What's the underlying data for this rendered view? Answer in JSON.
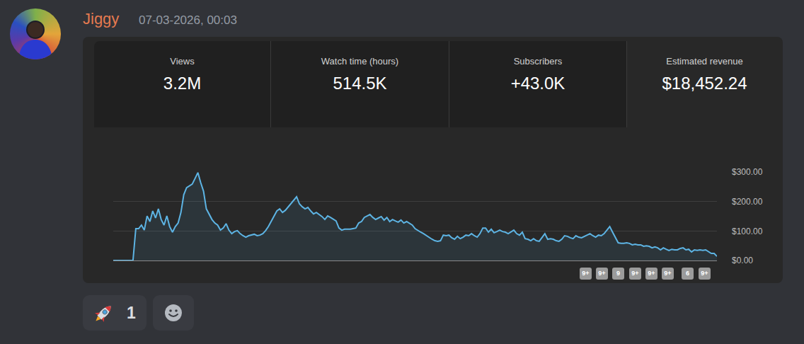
{
  "message": {
    "author": "Jiggy",
    "timestamp": "07-03-2026, 00:03",
    "reactions": [
      {
        "count": 1
      }
    ]
  },
  "stats": [
    {
      "label": "Views",
      "value": "3.2M"
    },
    {
      "label": "Watch time (hours)",
      "value": "514.5K"
    },
    {
      "label": "Subscribers",
      "value": "+43.0K"
    },
    {
      "label": "Estimated revenue",
      "value": "$18,452.24"
    }
  ],
  "chart_data": {
    "type": "line",
    "categories": [
      null,
      null,
      null,
      null,
      null,
      null,
      null,
      null,
      null,
      null,
      null,
      null,
      null,
      null,
      null,
      null,
      null,
      null,
      null,
      null,
      null,
      null,
      null,
      null,
      null,
      null,
      null,
      null,
      null,
      null,
      null,
      null,
      null,
      null,
      null,
      null,
      null,
      null,
      null,
      null,
      null,
      null,
      null,
      null,
      null,
      null,
      null,
      null,
      null,
      null,
      null,
      null,
      null,
      null,
      null,
      null,
      null,
      null,
      null,
      null,
      null,
      null,
      null,
      null,
      null,
      null,
      null,
      null,
      null,
      null,
      null,
      null,
      null,
      null,
      null,
      null,
      null,
      null,
      null,
      null,
      null,
      null,
      null,
      null,
      null,
      null,
      null,
      null,
      null,
      null,
      null,
      null,
      null,
      null,
      null,
      null,
      null,
      null,
      null,
      null,
      null,
      null,
      null,
      null,
      null,
      null,
      null,
      null,
      null,
      null,
      null,
      null,
      null,
      null,
      null,
      null,
      null,
      null,
      null,
      null,
      null,
      null,
      null,
      null,
      null,
      null,
      null,
      null,
      null,
      null,
      null,
      null,
      null,
      null,
      null,
      null,
      null,
      null,
      null,
      null,
      null,
      null,
      null,
      null,
      null,
      null,
      null,
      null,
      null,
      null,
      null,
      null,
      null,
      null,
      null,
      null,
      null,
      null,
      null,
      null,
      null,
      null,
      null,
      null,
      null,
      null,
      null,
      null,
      null,
      null,
      null,
      null,
      null,
      null,
      null,
      null,
      null,
      null,
      null,
      null,
      null,
      null,
      null,
      null,
      null,
      null,
      null,
      null,
      null,
      null,
      null,
      null,
      null,
      null,
      null,
      null,
      null,
      null,
      null,
      null,
      null,
      null,
      null,
      null,
      null,
      null,
      null,
      null,
      null,
      null,
      null,
      null,
      null,
      null,
      null
    ],
    "values": [
      0,
      0,
      0,
      0,
      0,
      0,
      0,
      0,
      108,
      108,
      120,
      103,
      151,
      132,
      168,
      144,
      175,
      139,
      120,
      151,
      115,
      96,
      115,
      127,
      163,
      223,
      247,
      252,
      259,
      278,
      298,
      264,
      235,
      175,
      156,
      139,
      127,
      120,
      103,
      110,
      125,
      103,
      91,
      98,
      101,
      91,
      84,
      79,
      84,
      86,
      89,
      84,
      86,
      91,
      101,
      115,
      132,
      151,
      168,
      175,
      163,
      170,
      182,
      194,
      206,
      216,
      192,
      182,
      175,
      180,
      168,
      158,
      163,
      156,
      149,
      139,
      151,
      146,
      139,
      134,
      110,
      103,
      106,
      106,
      106,
      108,
      110,
      127,
      132,
      146,
      151,
      156,
      146,
      139,
      144,
      149,
      137,
      146,
      132,
      139,
      134,
      130,
      137,
      127,
      132,
      125,
      120,
      108,
      101,
      96,
      91,
      84,
      79,
      72,
      67,
      65,
      67,
      86,
      84,
      86,
      77,
      72,
      82,
      74,
      79,
      86,
      84,
      91,
      84,
      79,
      91,
      110,
      110,
      96,
      106,
      94,
      98,
      103,
      98,
      96,
      91,
      98,
      103,
      91,
      86,
      96,
      74,
      72,
      67,
      74,
      67,
      65,
      77,
      91,
      72,
      74,
      72,
      67,
      65,
      72,
      84,
      82,
      77,
      74,
      84,
      79,
      77,
      82,
      86,
      91,
      84,
      79,
      86,
      84,
      91,
      103,
      115,
      96,
      77,
      60,
      58,
      58,
      60,
      58,
      53,
      55,
      53,
      53,
      48,
      50,
      48,
      43,
      46,
      43,
      36,
      43,
      38,
      34,
      38,
      36,
      36,
      41,
      43,
      36,
      38,
      29,
      36,
      34,
      36,
      34,
      36,
      31,
      24,
      24,
      14
    ],
    "color": "#5db4e4",
    "ylim": [
      0,
      300
    ],
    "yticks": [
      {
        "value": 0,
        "label": "$0.00"
      },
      {
        "value": 100,
        "label": "$100.00"
      },
      {
        "value": 200,
        "label": "$200.00"
      },
      {
        "value": 300,
        "label": "$300.00"
      }
    ],
    "grid": true,
    "tick_labels": "y"
  },
  "badges": [
    "9+",
    "9+",
    "9",
    "9+",
    "9+",
    "9+",
    "6",
    "9+"
  ]
}
